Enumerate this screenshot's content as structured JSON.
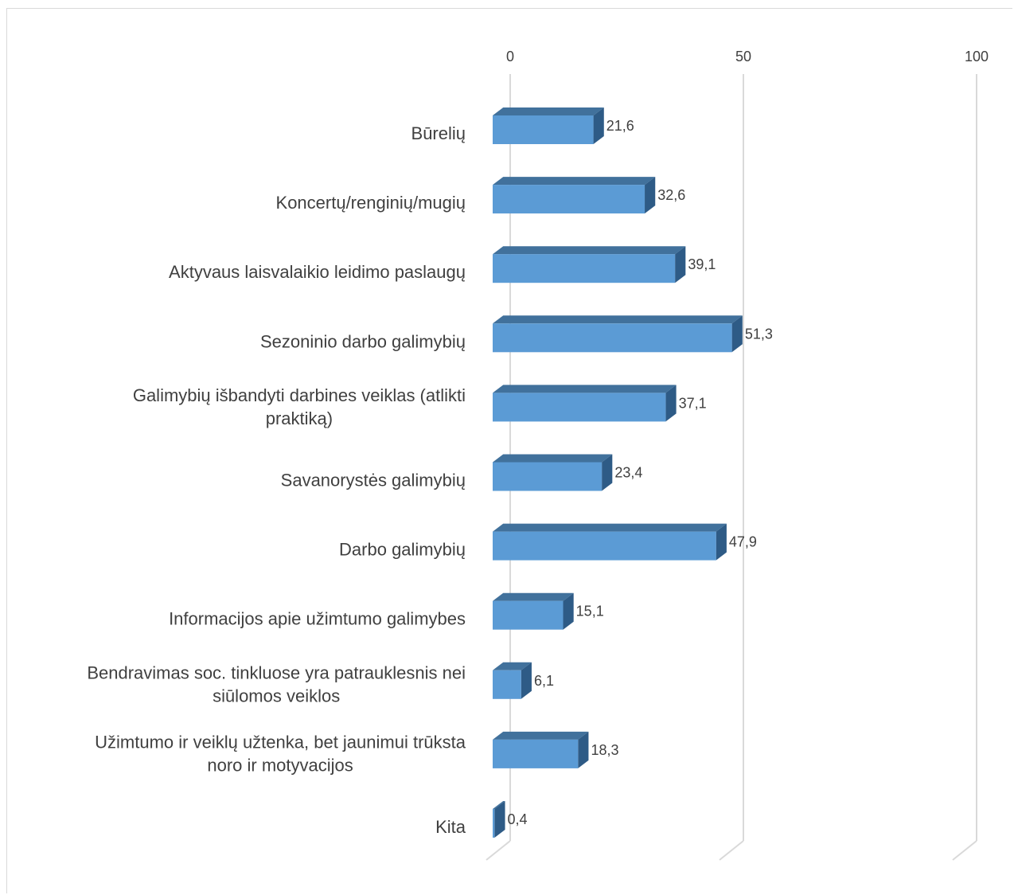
{
  "chart_data": {
    "type": "bar",
    "orientation": "horizontal",
    "style": "3d",
    "categories": [
      "Būrelių",
      "Koncertų/renginių/mugių",
      "Aktyvaus laisvalaikio leidimo paslaugų",
      "Sezoninio darbo galimybių",
      "Galimybių išbandyti darbines veiklas (atlikti praktiką)",
      "Savanorystės galimybių",
      "Darbo galimybių",
      "Informacijos apie užimtumo galimybes",
      "Bendravimas soc. tinkluose yra patrauklesnis nei siūlomos veiklos",
      "Užimtumo ir veiklų užtenka, bet jaunimui trūksta noro ir motyvacijos",
      "Kita"
    ],
    "category_lines": [
      [
        "Būrelių"
      ],
      [
        "Koncertų/renginių/mugių"
      ],
      [
        "Aktyvaus laisvalaikio leidimo paslaugų"
      ],
      [
        "Sezoninio darbo galimybių"
      ],
      [
        "Galimybių išbandyti darbines veiklas (atlikti",
        "praktiką)"
      ],
      [
        "Savanorystės galimybių"
      ],
      [
        "Darbo galimybių"
      ],
      [
        "Informacijos apie užimtumo galimybes"
      ],
      [
        "Bendravimas soc. tinkluose yra patrauklesnis nei",
        "siūlomos veiklos"
      ],
      [
        "Užimtumo ir veiklų užtenka, bet jaunimui trūksta",
        "noro ir motyvacijos"
      ],
      [
        "Kita"
      ]
    ],
    "values": [
      21.6,
      32.6,
      39.1,
      51.3,
      37.1,
      23.4,
      47.9,
      15.1,
      6.1,
      18.3,
      0.4
    ],
    "value_labels": [
      "21,6",
      "32,6",
      "39,1",
      "51,3",
      "37,1",
      "23,4",
      "47,9",
      "15,1",
      "6,1",
      "18,3",
      "0,4"
    ],
    "xlim": [
      0,
      100
    ],
    "x_ticks": [
      "0",
      "50",
      "100"
    ],
    "x_tick_values": [
      0,
      50,
      100
    ],
    "x_axis_position": "top",
    "grid": true,
    "colors": {
      "bar_front": "#5b9bd5",
      "bar_top": "#41719c",
      "bar_side": "#2e5b86",
      "grid": "#d9d9d9",
      "text": "#404040"
    }
  }
}
